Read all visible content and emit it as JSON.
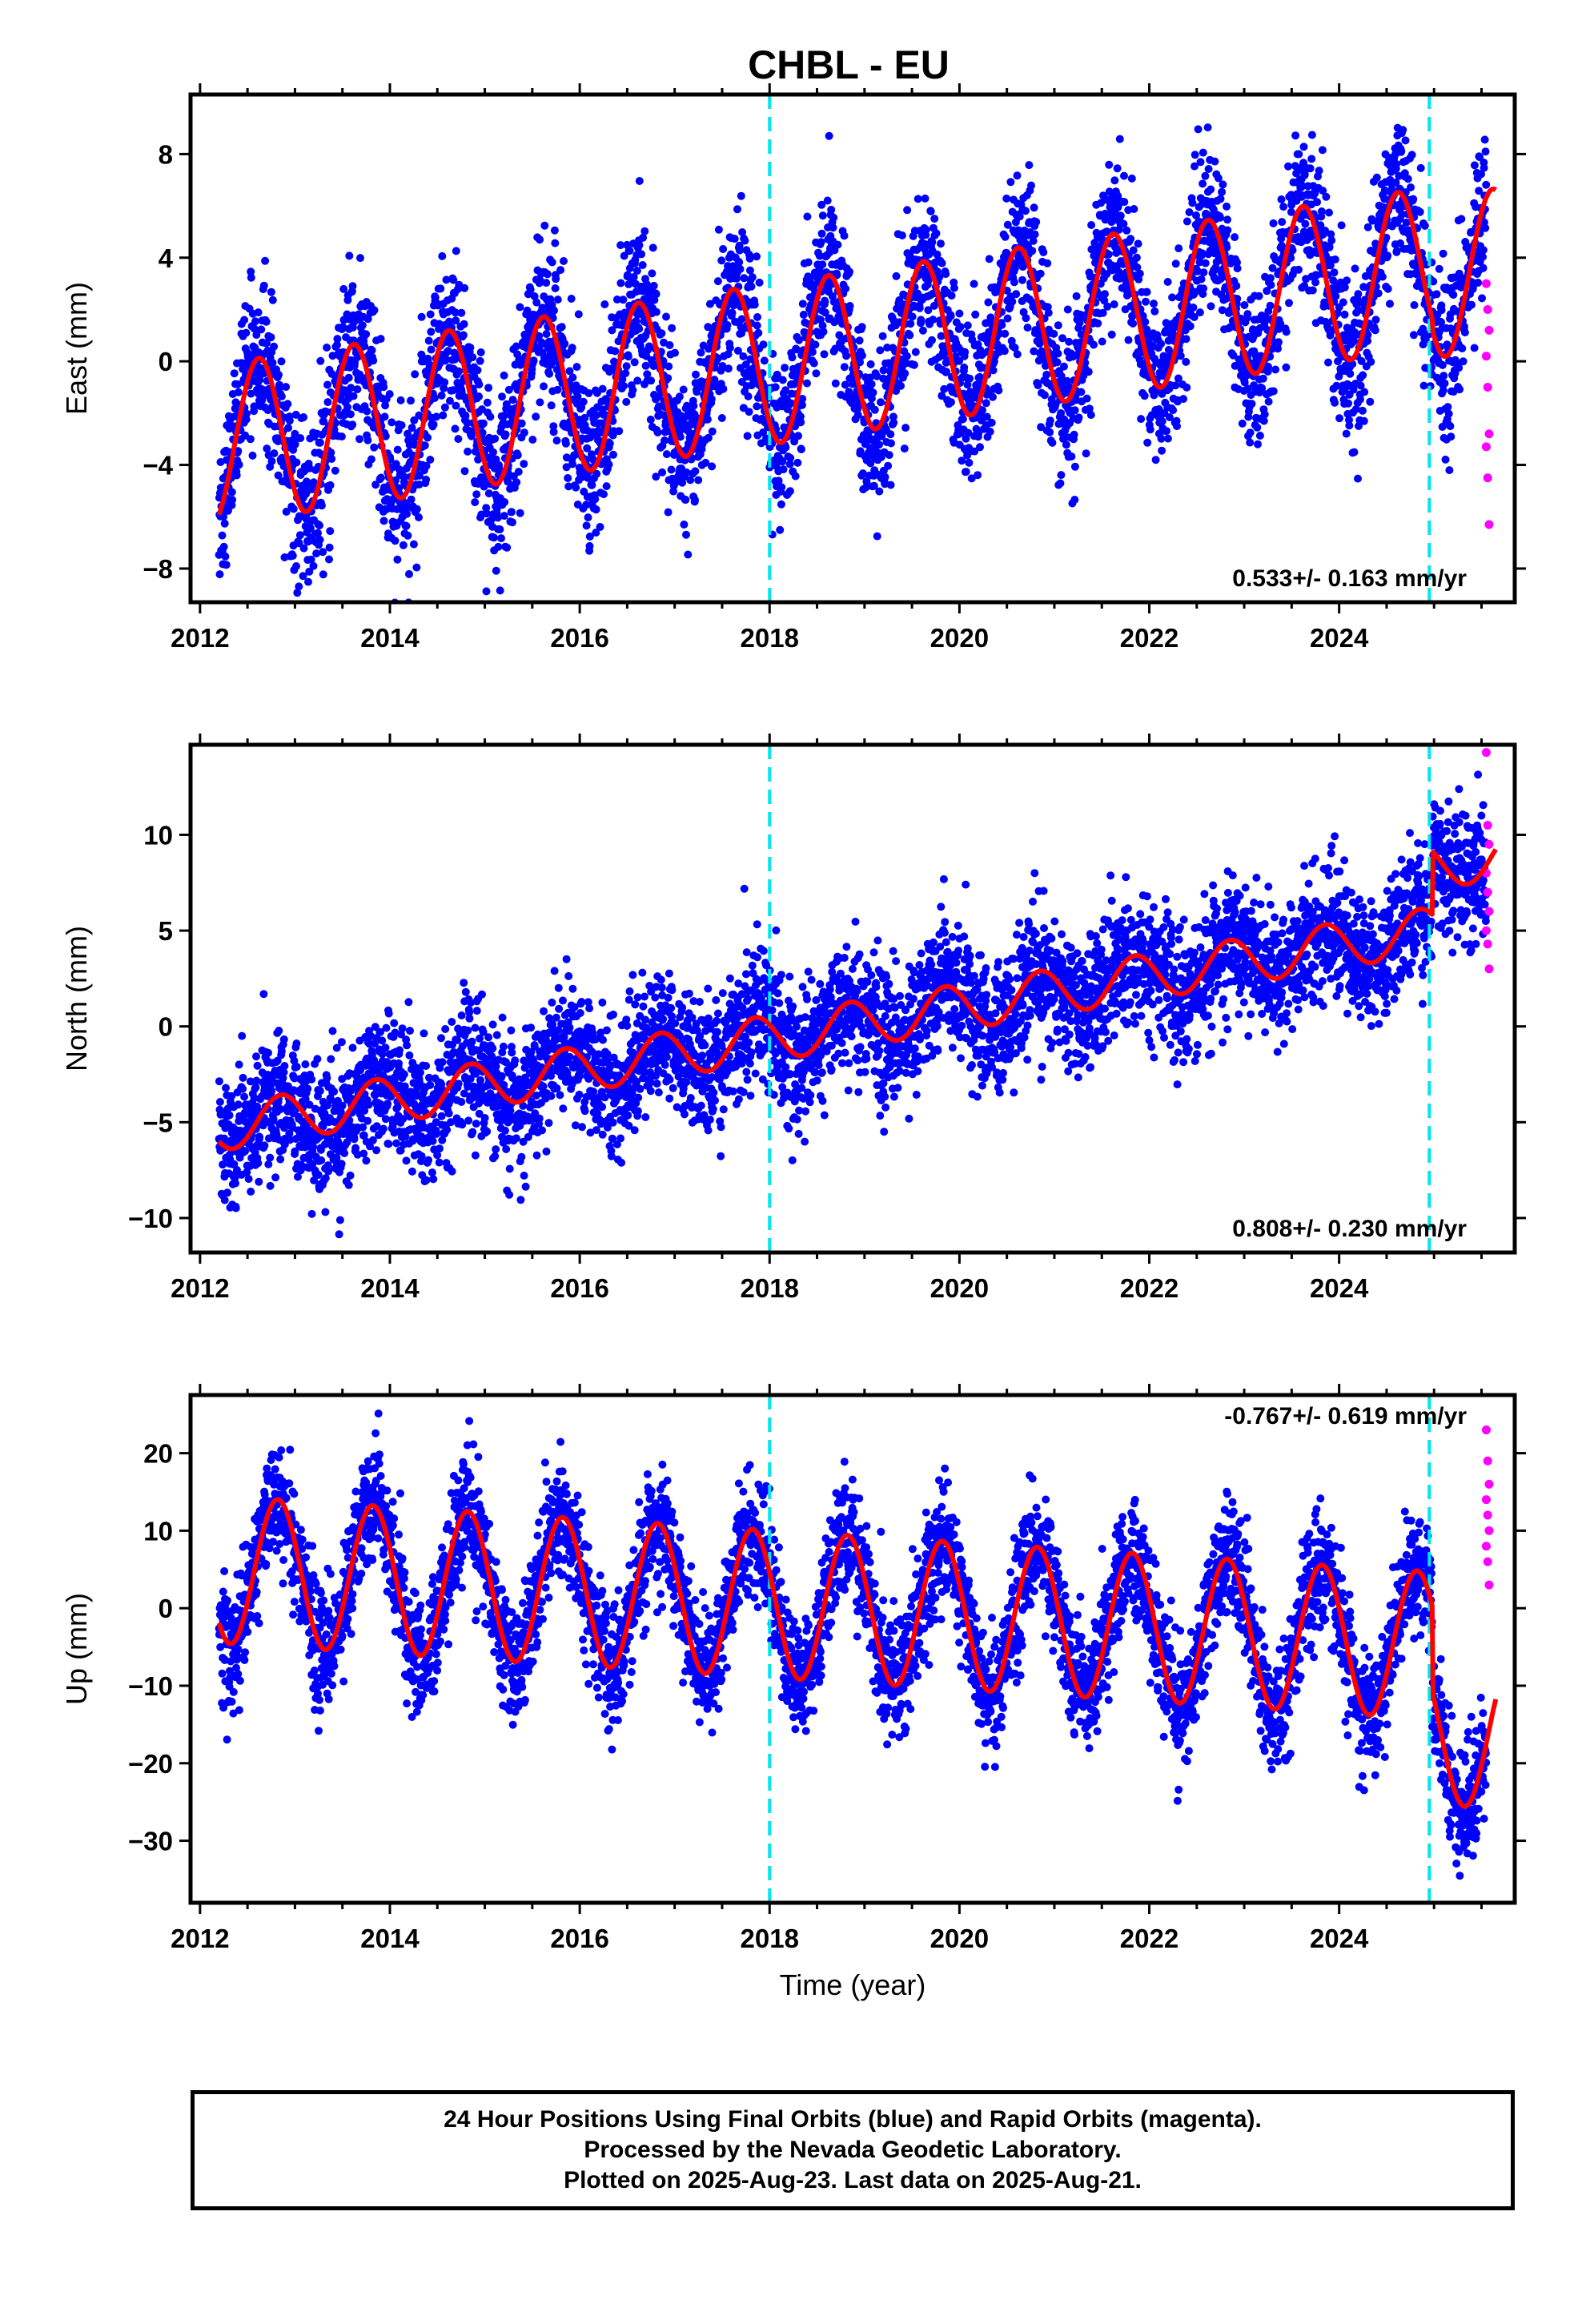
{
  "title": "CHBL - EU",
  "chart_data": [
    {
      "type": "scatter",
      "panel": "east",
      "ylabel": "East (mm)",
      "xlim": [
        2011.9,
        2025.85
      ],
      "ylim": [
        -9.3,
        10.3
      ],
      "yticks": [
        8,
        4,
        0,
        -4,
        -8
      ],
      "ytick_labels": [
        "8",
        "4",
        "0",
        "−4",
        "−8"
      ],
      "xticks": [
        2012,
        2014,
        2016,
        2018,
        2020,
        2022,
        2024
      ],
      "xtick_labels": [
        "2012",
        "2014",
        "2016",
        "2018",
        "2020",
        "2022",
        "2024"
      ],
      "rate_label": "0.533+/- 0.163 mm/yr",
      "model": {
        "start": 2012.2,
        "end": 2025.65,
        "base": -3.2,
        "slope": 0.533,
        "amp": 3.1,
        "peak": 0.42,
        "step_at": 2024.98,
        "step": -0.4
      },
      "scatter_sd": 1.5,
      "rapid_values": [
        3.0,
        2.0,
        1.2,
        0.2,
        -1.0,
        -2.8,
        -3.3,
        -4.5,
        -6.3
      ],
      "breaks": [
        2018.0,
        2024.95
      ]
    },
    {
      "type": "scatter",
      "panel": "north",
      "ylabel": "North (mm)",
      "xlim": [
        2011.9,
        2025.85
      ],
      "ylim": [
        -11.8,
        14.7
      ],
      "yticks": [
        10,
        5,
        0,
        -5,
        -10
      ],
      "ytick_labels": [
        "10",
        "5",
        "0",
        "−5",
        "−10"
      ],
      "xticks": [
        2012,
        2014,
        2016,
        2018,
        2020,
        2022,
        2024
      ],
      "xtick_labels": [
        "2012",
        "2014",
        "2016",
        "2018",
        "2020",
        "2022",
        "2024"
      ],
      "rate_label": "0.808+/- 0.230 mm/yr",
      "model": {
        "start": 2012.2,
        "end": 2025.65,
        "base": -5.3,
        "slope": 0.808,
        "amp": 1.2,
        "peak": 0.65,
        "step_at": 2024.98,
        "step": 3.3
      },
      "scatter_sd": 1.7,
      "rapid_values": [
        14.3,
        10.5,
        9.5,
        8.0,
        7.0,
        6.0,
        5.0,
        4.3,
        3.0
      ],
      "breaks": [
        2018.0,
        2024.95
      ]
    },
    {
      "type": "scatter",
      "panel": "up",
      "ylabel": "Up (mm)",
      "xlabel": "Time (year)",
      "xlim": [
        2011.9,
        2025.85
      ],
      "ylim": [
        -38,
        27.5
      ],
      "yticks": [
        20,
        10,
        0,
        -10,
        -20,
        -30
      ],
      "ytick_labels": [
        "20",
        "10",
        "0",
        "−10",
        "−20",
        "−30"
      ],
      "xticks": [
        2012,
        2014,
        2016,
        2018,
        2020,
        2022,
        2024
      ],
      "xtick_labels": [
        "2012",
        "2014",
        "2016",
        "2018",
        "2020",
        "2022",
        "2024"
      ],
      "rate_label": "-0.767+/- 0.619 mm/yr",
      "model": {
        "start": 2012.2,
        "end": 2025.65,
        "base": 5.0,
        "slope": -0.767,
        "amp": 9.5,
        "peak": 0.62,
        "step_at": 2024.98,
        "step": -11.0
      },
      "scatter_sd": 3.8,
      "rapid_values": [
        23.0,
        19.0,
        16.0,
        14.0,
        12.0,
        10.0,
        8.0,
        6.0,
        3.0
      ],
      "breaks": [
        2018.0,
        2024.95
      ]
    }
  ],
  "footer": {
    "line1": "24 Hour Positions Using Final Orbits (blue) and Rapid Orbits (magenta).",
    "line2": "Processed by the Nevada Geodetic Laboratory.",
    "line3": "Plotted on 2025-Aug-23. Last data on 2025-Aug-21."
  },
  "colors": {
    "final": "#0000ff",
    "rapid": "#ff00ff",
    "model": "#ff0000",
    "break": "#00e5ee",
    "frame": "#000000"
  }
}
